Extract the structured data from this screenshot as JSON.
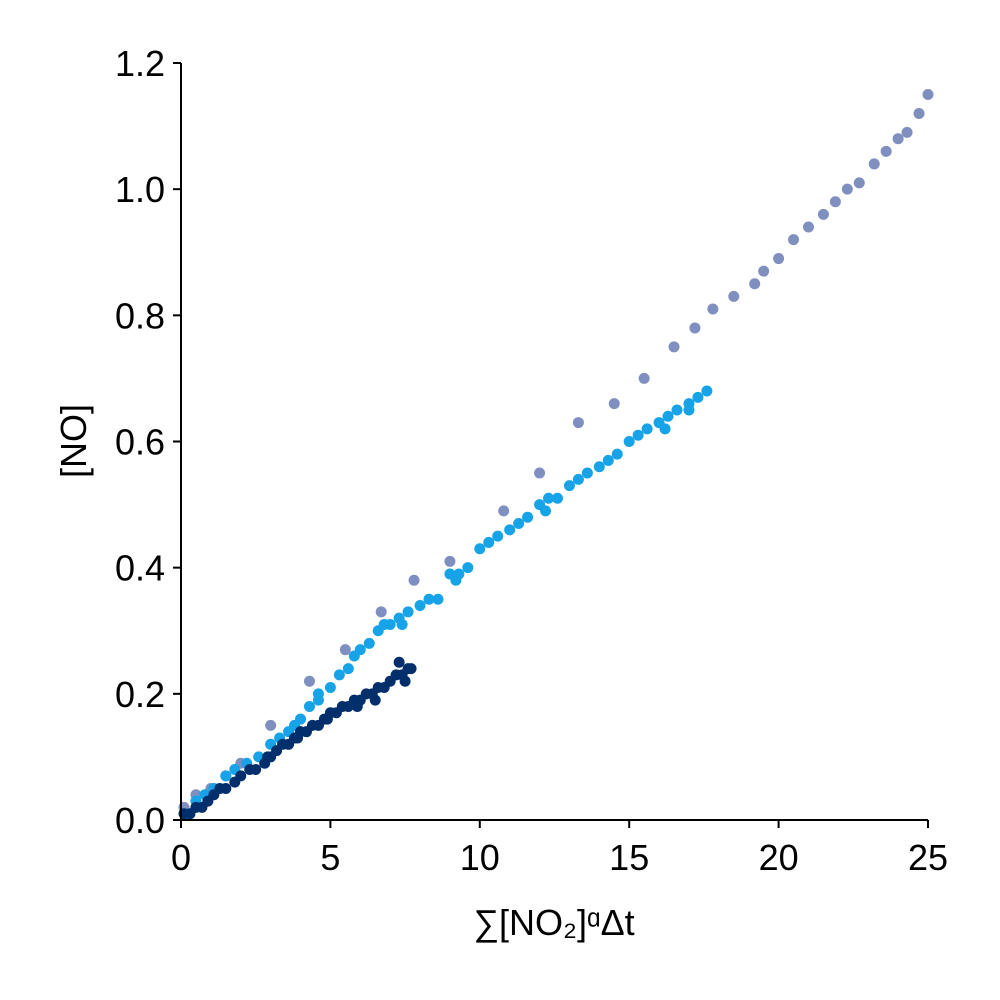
{
  "chart_data": {
    "type": "scatter",
    "title": "",
    "xlabel": "∑[NO₂]ᵅΔt",
    "ylabel": "[NO]",
    "xlim": [
      0,
      25
    ],
    "ylim": [
      0,
      1.2
    ],
    "xticks": [
      "0",
      "5",
      "10",
      "15",
      "20",
      "25"
    ],
    "yticks": [
      "0.0",
      "0.2",
      "0.4",
      "0.6",
      "0.8",
      "1.0",
      "1.2"
    ],
    "grid": false,
    "legend": "none",
    "series": [
      {
        "color": "#7f8fbf",
        "x": [
          0.1,
          0.5,
          1.0,
          1.5,
          2.0,
          3.0,
          4.3,
          5.5,
          6.7,
          7.8,
          9.0,
          10.8,
          12.0,
          13.3,
          14.5,
          15.5,
          16.5,
          17.2,
          17.8,
          18.5,
          19.2,
          20.0,
          21.0,
          21.9,
          22.7,
          23.6,
          24.3,
          25.0,
          19.5,
          20.5,
          21.5,
          22.3,
          23.2,
          24.0,
          24.7
        ],
        "y": [
          0.02,
          0.04,
          0.05,
          0.07,
          0.09,
          0.15,
          0.22,
          0.27,
          0.33,
          0.38,
          0.41,
          0.49,
          0.55,
          0.63,
          0.66,
          0.7,
          0.75,
          0.78,
          0.81,
          0.83,
          0.85,
          0.89,
          0.94,
          0.98,
          1.01,
          1.06,
          1.09,
          1.15,
          0.87,
          0.92,
          0.96,
          1.0,
          1.04,
          1.08,
          1.12
        ]
      },
      {
        "color": "#16a3e8",
        "x": [
          0.2,
          0.5,
          0.8,
          1.1,
          1.5,
          1.8,
          2.2,
          2.6,
          3.0,
          3.3,
          3.6,
          4.0,
          4.3,
          4.6,
          5.0,
          5.3,
          5.6,
          6.0,
          6.3,
          6.6,
          7.0,
          7.3,
          7.6,
          8.0,
          8.3,
          8.6,
          9.0,
          9.3,
          9.6,
          10.0,
          10.3,
          10.6,
          11.0,
          11.3,
          11.6,
          12.0,
          12.3,
          12.6,
          13.0,
          13.3,
          13.6,
          14.0,
          14.3,
          14.6,
          15.0,
          15.3,
          15.6,
          16.0,
          16.3,
          16.6,
          17.0,
          17.3,
          17.6,
          3.8,
          5.8,
          6.8,
          9.2,
          12.2,
          16.2,
          17.0,
          4.6,
          7.4
        ],
        "y": [
          0.01,
          0.03,
          0.04,
          0.05,
          0.07,
          0.08,
          0.09,
          0.1,
          0.12,
          0.13,
          0.14,
          0.16,
          0.18,
          0.19,
          0.21,
          0.23,
          0.24,
          0.27,
          0.28,
          0.3,
          0.31,
          0.32,
          0.33,
          0.34,
          0.35,
          0.35,
          0.39,
          0.39,
          0.4,
          0.43,
          0.44,
          0.45,
          0.46,
          0.47,
          0.48,
          0.5,
          0.51,
          0.51,
          0.53,
          0.54,
          0.55,
          0.56,
          0.57,
          0.58,
          0.6,
          0.61,
          0.62,
          0.63,
          0.64,
          0.65,
          0.66,
          0.67,
          0.68,
          0.15,
          0.26,
          0.31,
          0.38,
          0.49,
          0.62,
          0.65,
          0.2,
          0.31
        ]
      },
      {
        "color": "#002f6c",
        "x": [
          0.1,
          0.3,
          0.5,
          0.7,
          0.9,
          1.1,
          1.3,
          1.5,
          1.8,
          2.0,
          2.3,
          2.5,
          2.8,
          3.0,
          3.2,
          3.4,
          3.6,
          3.8,
          4.0,
          4.2,
          4.4,
          4.6,
          4.8,
          5.0,
          5.2,
          5.4,
          5.6,
          5.8,
          6.0,
          6.2,
          6.4,
          6.6,
          6.8,
          7.0,
          7.2,
          7.4,
          7.6,
          7.7,
          6.5,
          5.9,
          4.9,
          3.9,
          2.9,
          7.3,
          7.5
        ],
        "y": [
          0.01,
          0.01,
          0.02,
          0.02,
          0.03,
          0.04,
          0.05,
          0.05,
          0.06,
          0.07,
          0.08,
          0.08,
          0.09,
          0.1,
          0.11,
          0.12,
          0.12,
          0.13,
          0.14,
          0.14,
          0.15,
          0.15,
          0.16,
          0.17,
          0.17,
          0.18,
          0.18,
          0.19,
          0.19,
          0.2,
          0.2,
          0.21,
          0.21,
          0.22,
          0.23,
          0.23,
          0.24,
          0.24,
          0.19,
          0.18,
          0.16,
          0.13,
          0.1,
          0.25,
          0.22
        ]
      }
    ]
  }
}
